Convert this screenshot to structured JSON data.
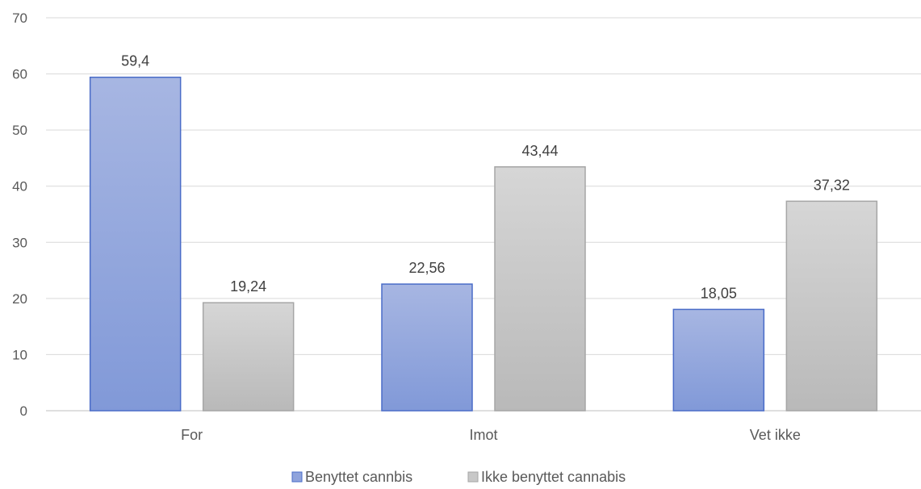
{
  "chart_data": {
    "type": "bar",
    "categories": [
      "For",
      "Imot",
      "Vet ikke"
    ],
    "series": [
      {
        "name": "Benyttet cannbis",
        "values": [
          59.4,
          22.56,
          18.05
        ],
        "labels": [
          "59,4",
          "22,56",
          "18,05"
        ],
        "color": "#8fa3dc",
        "stroke": "#4a6cc8"
      },
      {
        "name": "Ikke benyttet cannabis",
        "values": [
          19.24,
          43.44,
          37.32
        ],
        "labels": [
          "19,24",
          "43,44",
          "37,32"
        ],
        "color": "#c8c8c8",
        "stroke": "#a6a6a6"
      }
    ],
    "title": "",
    "xlabel": "",
    "ylabel": "",
    "ylim": [
      0,
      70
    ],
    "yticks": [
      "0",
      "10",
      "20",
      "30",
      "40",
      "50",
      "60",
      "70"
    ],
    "grid": true,
    "legend": "bottom"
  }
}
